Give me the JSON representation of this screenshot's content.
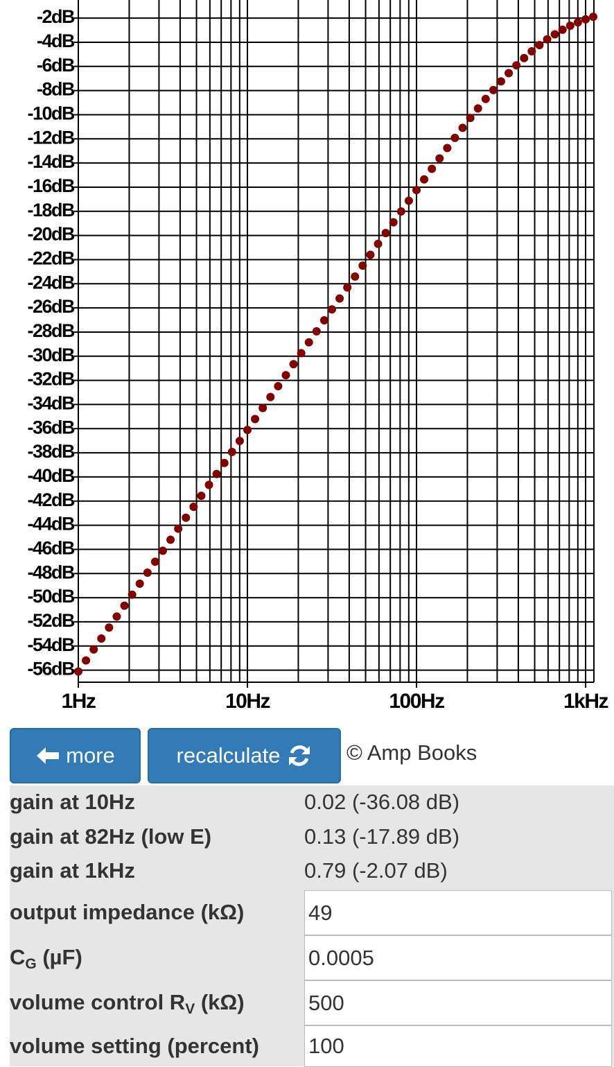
{
  "chart_data": {
    "type": "scatter",
    "xscale": "log",
    "grid": true,
    "color": "#800000",
    "x": [
      1,
      1.11,
      1.233,
      1.369,
      1.52,
      1.688,
      1.874,
      2.081,
      2.31,
      2.565,
      2.848,
      3.162,
      3.511,
      3.899,
      4.329,
      4.806,
      5.337,
      5.926,
      6.579,
      7.305,
      8.111,
      9.006,
      10,
      11.1,
      12.33,
      13.69,
      15.2,
      16.88,
      18.74,
      20.81,
      23.1,
      25.65,
      28.48,
      31.62,
      35.11,
      38.99,
      43.29,
      48.06,
      53.37,
      59.26,
      65.79,
      73.05,
      81.11,
      90.06,
      100,
      111.0,
      123.3,
      136.9,
      152.0,
      168.8,
      187.4,
      208.1,
      231.0,
      256.5,
      284.8,
      316.2,
      351.1,
      389.9,
      432.9,
      480.6,
      533.7,
      592.6,
      657.9,
      730.5,
      811.1,
      900.6,
      1000,
      1110
    ],
    "values": [
      -56.11,
      -55.2,
      -54.29,
      -53.38,
      -52.47,
      -51.56,
      -50.66,
      -49.75,
      -48.84,
      -47.93,
      -47.02,
      -46.11,
      -45.2,
      -44.29,
      -43.38,
      -42.47,
      -41.56,
      -40.66,
      -39.75,
      -38.84,
      -37.93,
      -37.02,
      -36.11,
      -35.2,
      -34.29,
      -33.38,
      -32.48,
      -31.57,
      -30.66,
      -29.75,
      -28.85,
      -27.94,
      -27.03,
      -26.12,
      -25.22,
      -24.31,
      -23.4,
      -22.5,
      -21.6,
      -20.7,
      -19.8,
      -18.91,
      -18.01,
      -17.12,
      -16.24,
      -15.36,
      -14.48,
      -13.62,
      -12.76,
      -11.92,
      -11.09,
      -10.27,
      -9.48,
      -8.7,
      -7.96,
      -7.24,
      -6.56,
      -5.91,
      -5.31,
      -4.75,
      -4.23,
      -3.76,
      -3.34,
      -2.96,
      -2.63,
      -2.35,
      -2.1,
      -1.89
    ],
    "xlim": [
      1,
      1120
    ],
    "xticks": [
      {
        "value": 1,
        "label": "1Hz"
      },
      {
        "value": 10,
        "label": "10Hz"
      },
      {
        "value": 100,
        "label": "100Hz"
      },
      {
        "value": 1000,
        "label": "1kHz"
      }
    ],
    "xgrid": [
      1,
      2,
      3,
      4,
      5,
      6,
      7,
      8,
      9,
      10,
      20,
      30,
      40,
      50,
      60,
      70,
      80,
      90,
      100,
      200,
      300,
      400,
      500,
      600,
      700,
      800,
      900,
      1000
    ],
    "ylim": [
      -57,
      -0.5
    ],
    "yticks": [
      {
        "value": -2,
        "label": "-2dB"
      },
      {
        "value": -4,
        "label": "-4dB"
      },
      {
        "value": -6,
        "label": "-6dB"
      },
      {
        "value": -8,
        "label": "-8dB"
      },
      {
        "value": -10,
        "label": "-10dB"
      },
      {
        "value": -12,
        "label": "-12dB"
      },
      {
        "value": -14,
        "label": "-14dB"
      },
      {
        "value": -16,
        "label": "-16dB"
      },
      {
        "value": -18,
        "label": "-18dB"
      },
      {
        "value": -20,
        "label": "-20dB"
      },
      {
        "value": -22,
        "label": "-22dB"
      },
      {
        "value": -24,
        "label": "-24dB"
      },
      {
        "value": -26,
        "label": "-26dB"
      },
      {
        "value": -28,
        "label": "-28dB"
      },
      {
        "value": -30,
        "label": "-30dB"
      },
      {
        "value": -32,
        "label": "-32dB"
      },
      {
        "value": -34,
        "label": "-34dB"
      },
      {
        "value": -36,
        "label": "-36dB"
      },
      {
        "value": -38,
        "label": "-38dB"
      },
      {
        "value": -40,
        "label": "-40dB"
      },
      {
        "value": -42,
        "label": "-42dB"
      },
      {
        "value": -44,
        "label": "-44dB"
      },
      {
        "value": -46,
        "label": "-46dB"
      },
      {
        "value": -48,
        "label": "-48dB"
      },
      {
        "value": -50,
        "label": "-50dB"
      },
      {
        "value": -52,
        "label": "-52dB"
      },
      {
        "value": -54,
        "label": "-54dB"
      },
      {
        "value": -56,
        "label": "-56dB"
      }
    ]
  },
  "buttons": {
    "more": "more",
    "recalculate": "recalculate"
  },
  "copyright": "© Amp Books",
  "results": [
    {
      "label": "gain at 10Hz",
      "value": "0.02 (-36.08 dB)"
    },
    {
      "label": "gain at 82Hz (low E)",
      "value": "0.13 (-17.89 dB)"
    },
    {
      "label": "gain at 1kHz",
      "value": "0.79 (-2.07 dB)"
    }
  ],
  "inputs": [
    {
      "label": {
        "text": "output impedance (kΩ)"
      },
      "value": "49"
    },
    {
      "label": {
        "text": "C",
        "sub": "G",
        "rest": " (µF)"
      },
      "value": "0.0005"
    },
    {
      "label": {
        "text": "volume control R",
        "sub": "V",
        "rest": " (kΩ)"
      },
      "value": "500"
    },
    {
      "label": {
        "text": "volume setting (percent)"
      },
      "value": "100"
    }
  ]
}
